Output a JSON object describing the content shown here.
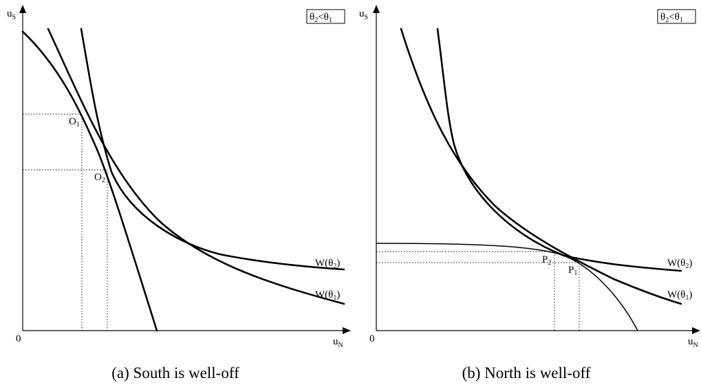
{
  "panels": [
    {
      "id": "a",
      "caption": "(a) South is well-off",
      "origin_label": "0",
      "y_axis": {
        "base": "u",
        "sub": "S"
      },
      "x_axis": {
        "base": "u",
        "sub": "N"
      },
      "condition": {
        "t1": "θ",
        "s1": "2",
        "op": "<",
        "t2": "θ",
        "s2": "1"
      },
      "curve_labels": [
        {
          "base": "W(θ",
          "sub": "2",
          "tail": ")"
        },
        {
          "base": "W(θ",
          "sub": "1",
          "tail": ")"
        }
      ],
      "points": [
        {
          "base": "O",
          "sub": "1"
        },
        {
          "base": "O",
          "sub": "2"
        }
      ]
    },
    {
      "id": "b",
      "caption": "(b) North is well-off",
      "origin_label": "0",
      "y_axis": {
        "base": "u",
        "sub": "S"
      },
      "x_axis": {
        "base": "u",
        "sub": "N"
      },
      "condition": {
        "t1": "θ",
        "s1": "2",
        "op": "<",
        "t2": "θ",
        "s2": "1"
      },
      "curve_labels": [
        {
          "base": "W(θ",
          "sub": "2",
          "tail": ")"
        },
        {
          "base": "W(θ",
          "sub": "1",
          "tail": ")"
        }
      ],
      "points": [
        {
          "base": "P",
          "sub": "2"
        },
        {
          "base": "P",
          "sub": "1"
        }
      ]
    }
  ]
}
